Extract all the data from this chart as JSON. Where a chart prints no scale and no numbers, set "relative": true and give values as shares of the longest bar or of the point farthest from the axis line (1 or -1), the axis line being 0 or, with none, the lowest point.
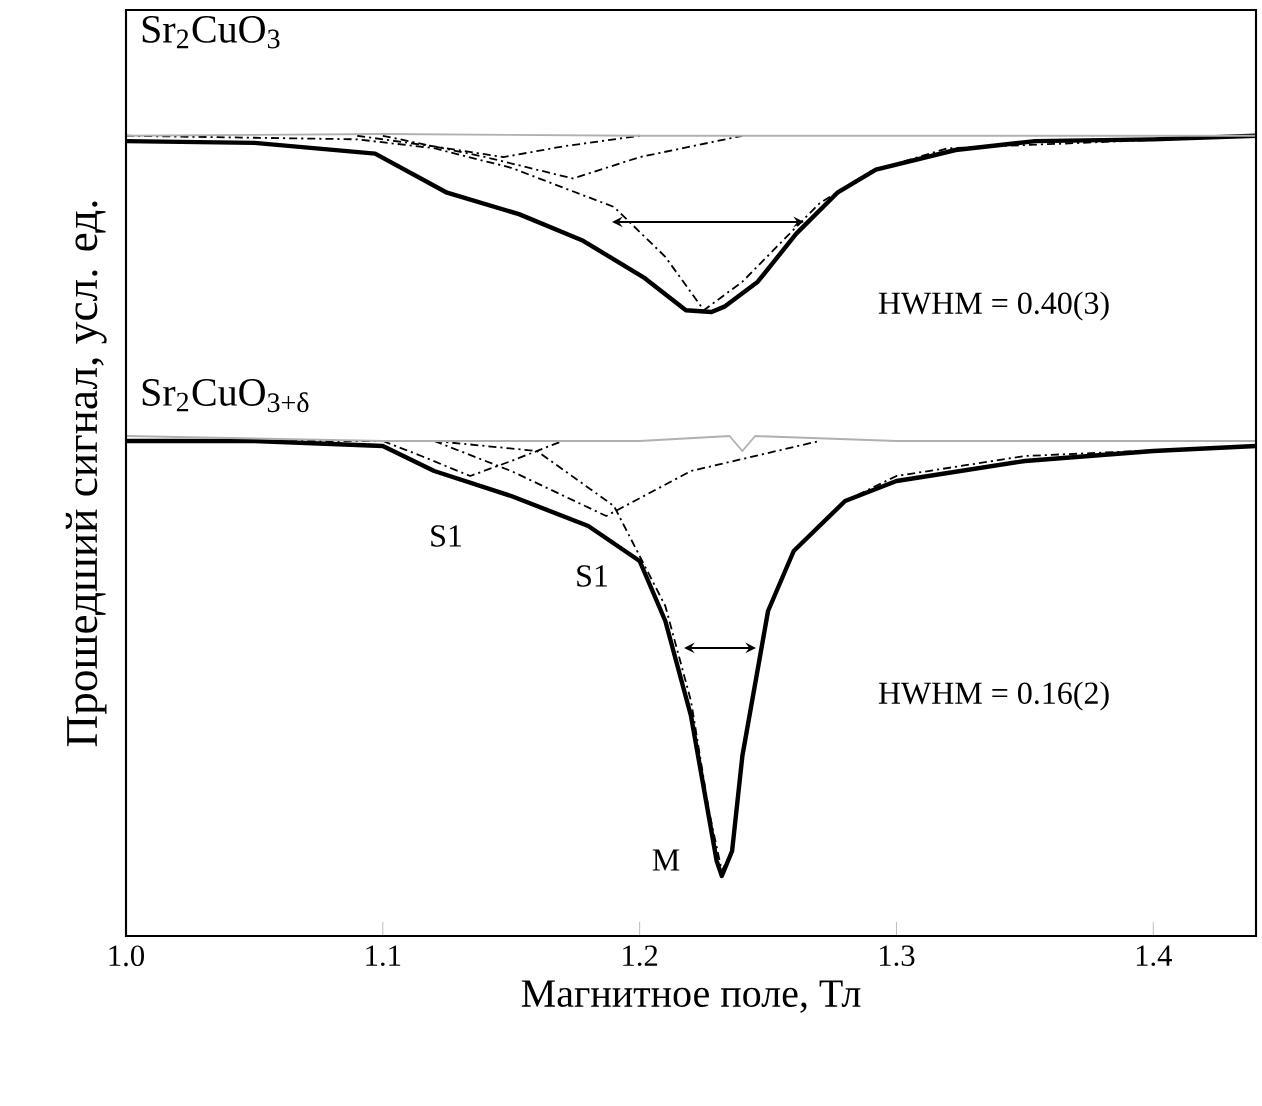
{
  "chart_data": [
    {
      "type": "line",
      "title": "Sr$_{2}$CuO$_{3}$",
      "ylabel": "Прошедший сигнал, усл. ед.",
      "relative": true,
      "xlim": [
        1.0,
        1.44
      ],
      "tick_labels": false,
      "series": [
        {
          "color": "#000000",
          "line_style": "solid",
          "x": [
            1.0,
            1.05,
            1.097,
            1.125,
            1.153,
            1.178,
            1.202,
            1.218,
            1.228,
            1.233,
            1.246,
            1.261,
            1.277,
            1.292,
            1.323,
            1.354,
            1.4,
            1.44
          ],
          "values": [
            0.96,
            0.95,
            0.89,
            0.67,
            0.55,
            0.4,
            0.19,
            0.01,
            0,
            0.03,
            0.17,
            0.44,
            0.67,
            0.8,
            0.91,
            0.96,
            0.97,
            0.99
          ]
        },
        {
          "color": "#000000",
          "line_style": "dashdot",
          "x": [
            1.0,
            1.09,
            1.12,
            1.15,
            1.19,
            1.21,
            1.225,
            1.24,
            1.255,
            1.27,
            1.29,
            1.32,
            1.44
          ],
          "values": [
            0.99,
            0.97,
            0.92,
            0.81,
            0.59,
            0.31,
            0.01,
            0.17,
            0.39,
            0.61,
            0.79,
            0.92,
            0.99
          ]
        },
        {
          "color": "#000000",
          "line_style": "dashdot",
          "x": [
            1.09,
            1.12,
            1.147,
            1.17,
            1.2
          ],
          "values": [
            0.99,
            0.93,
            0.87,
            0.93,
            0.99
          ]
        },
        {
          "color": "#000000",
          "line_style": "dashdot",
          "x": [
            1.1,
            1.14,
            1.174,
            1.2,
            1.24
          ],
          "values": [
            0.99,
            0.87,
            0.75,
            0.87,
            0.99
          ]
        },
        {
          "color": "#b0b0b0",
          "line_style": "solid",
          "x": [
            1.0,
            1.1,
            1.2,
            1.3,
            1.44
          ],
          "values": [
            0.99,
            1.0,
            0.99,
            0.99,
            0.99
          ]
        }
      ],
      "annotations": [
        "HWHM = 0.40(3)"
      ]
    },
    {
      "type": "line",
      "title": "Sr$_{2}$CuO$_{3+δ}$",
      "xlabel": "Магнитное поле, Тл",
      "relative": true,
      "xlim": [
        1.0,
        1.44
      ],
      "xticks": [
        {
          "value": 1.0,
          "label": "1.0"
        },
        {
          "value": 1.1,
          "label": "1.1"
        },
        {
          "value": 1.2,
          "label": "1.2"
        },
        {
          "value": 1.3,
          "label": "1.3"
        },
        {
          "value": 1.4,
          "label": "1.4"
        }
      ],
      "tick_labels": "x",
      "series": [
        {
          "color": "#000000",
          "line_style": "solid",
          "x": [
            1.0,
            1.05,
            1.1,
            1.12,
            1.15,
            1.18,
            1.2,
            1.21,
            1.22,
            1.23,
            1.232,
            1.236,
            1.24,
            1.25,
            1.26,
            1.28,
            1.3,
            1.35,
            1.4,
            1.44
          ],
          "values": [
            0.99,
            0.99,
            0.98,
            0.93,
            0.88,
            0.82,
            0.75,
            0.63,
            0.44,
            0.15,
            0.12,
            0.17,
            0.36,
            0.65,
            0.77,
            0.87,
            0.91,
            0.95,
            0.97,
            0.98
          ]
        },
        {
          "color": "#000000",
          "line_style": "dashdot",
          "x": [
            1.0,
            1.12,
            1.16,
            1.19,
            1.21,
            1.22,
            1.227,
            1.232,
            1.236,
            1.24,
            1.25,
            1.26,
            1.28,
            1.3,
            1.35,
            1.44
          ],
          "values": [
            0.99,
            0.99,
            0.97,
            0.86,
            0.66,
            0.47,
            0.25,
            0.13,
            0.17,
            0.36,
            0.65,
            0.77,
            0.87,
            0.92,
            0.96,
            0.98
          ]
        },
        {
          "color": "#000000",
          "line_style": "dashdot",
          "x": [
            1.1,
            1.115,
            1.134,
            1.15,
            1.17
          ],
          "values": [
            0.99,
            0.96,
            0.92,
            0.95,
            0.99
          ]
        },
        {
          "color": "#000000",
          "line_style": "dashdot",
          "x": [
            1.12,
            1.15,
            1.187,
            1.22,
            1.27
          ],
          "values": [
            0.99,
            0.93,
            0.84,
            0.93,
            0.99
          ]
        },
        {
          "color": "#b0b0b0",
          "line_style": "solid",
          "x": [
            1.0,
            1.1,
            1.2,
            1.235,
            1.24,
            1.245,
            1.3,
            1.44
          ],
          "values": [
            1.0,
            0.99,
            0.99,
            1.0,
            0.97,
            1.0,
            0.99,
            0.99
          ]
        }
      ],
      "annotations": [
        "S1",
        "S1",
        "M",
        "HWHM = 0.16(2)"
      ]
    }
  ]
}
